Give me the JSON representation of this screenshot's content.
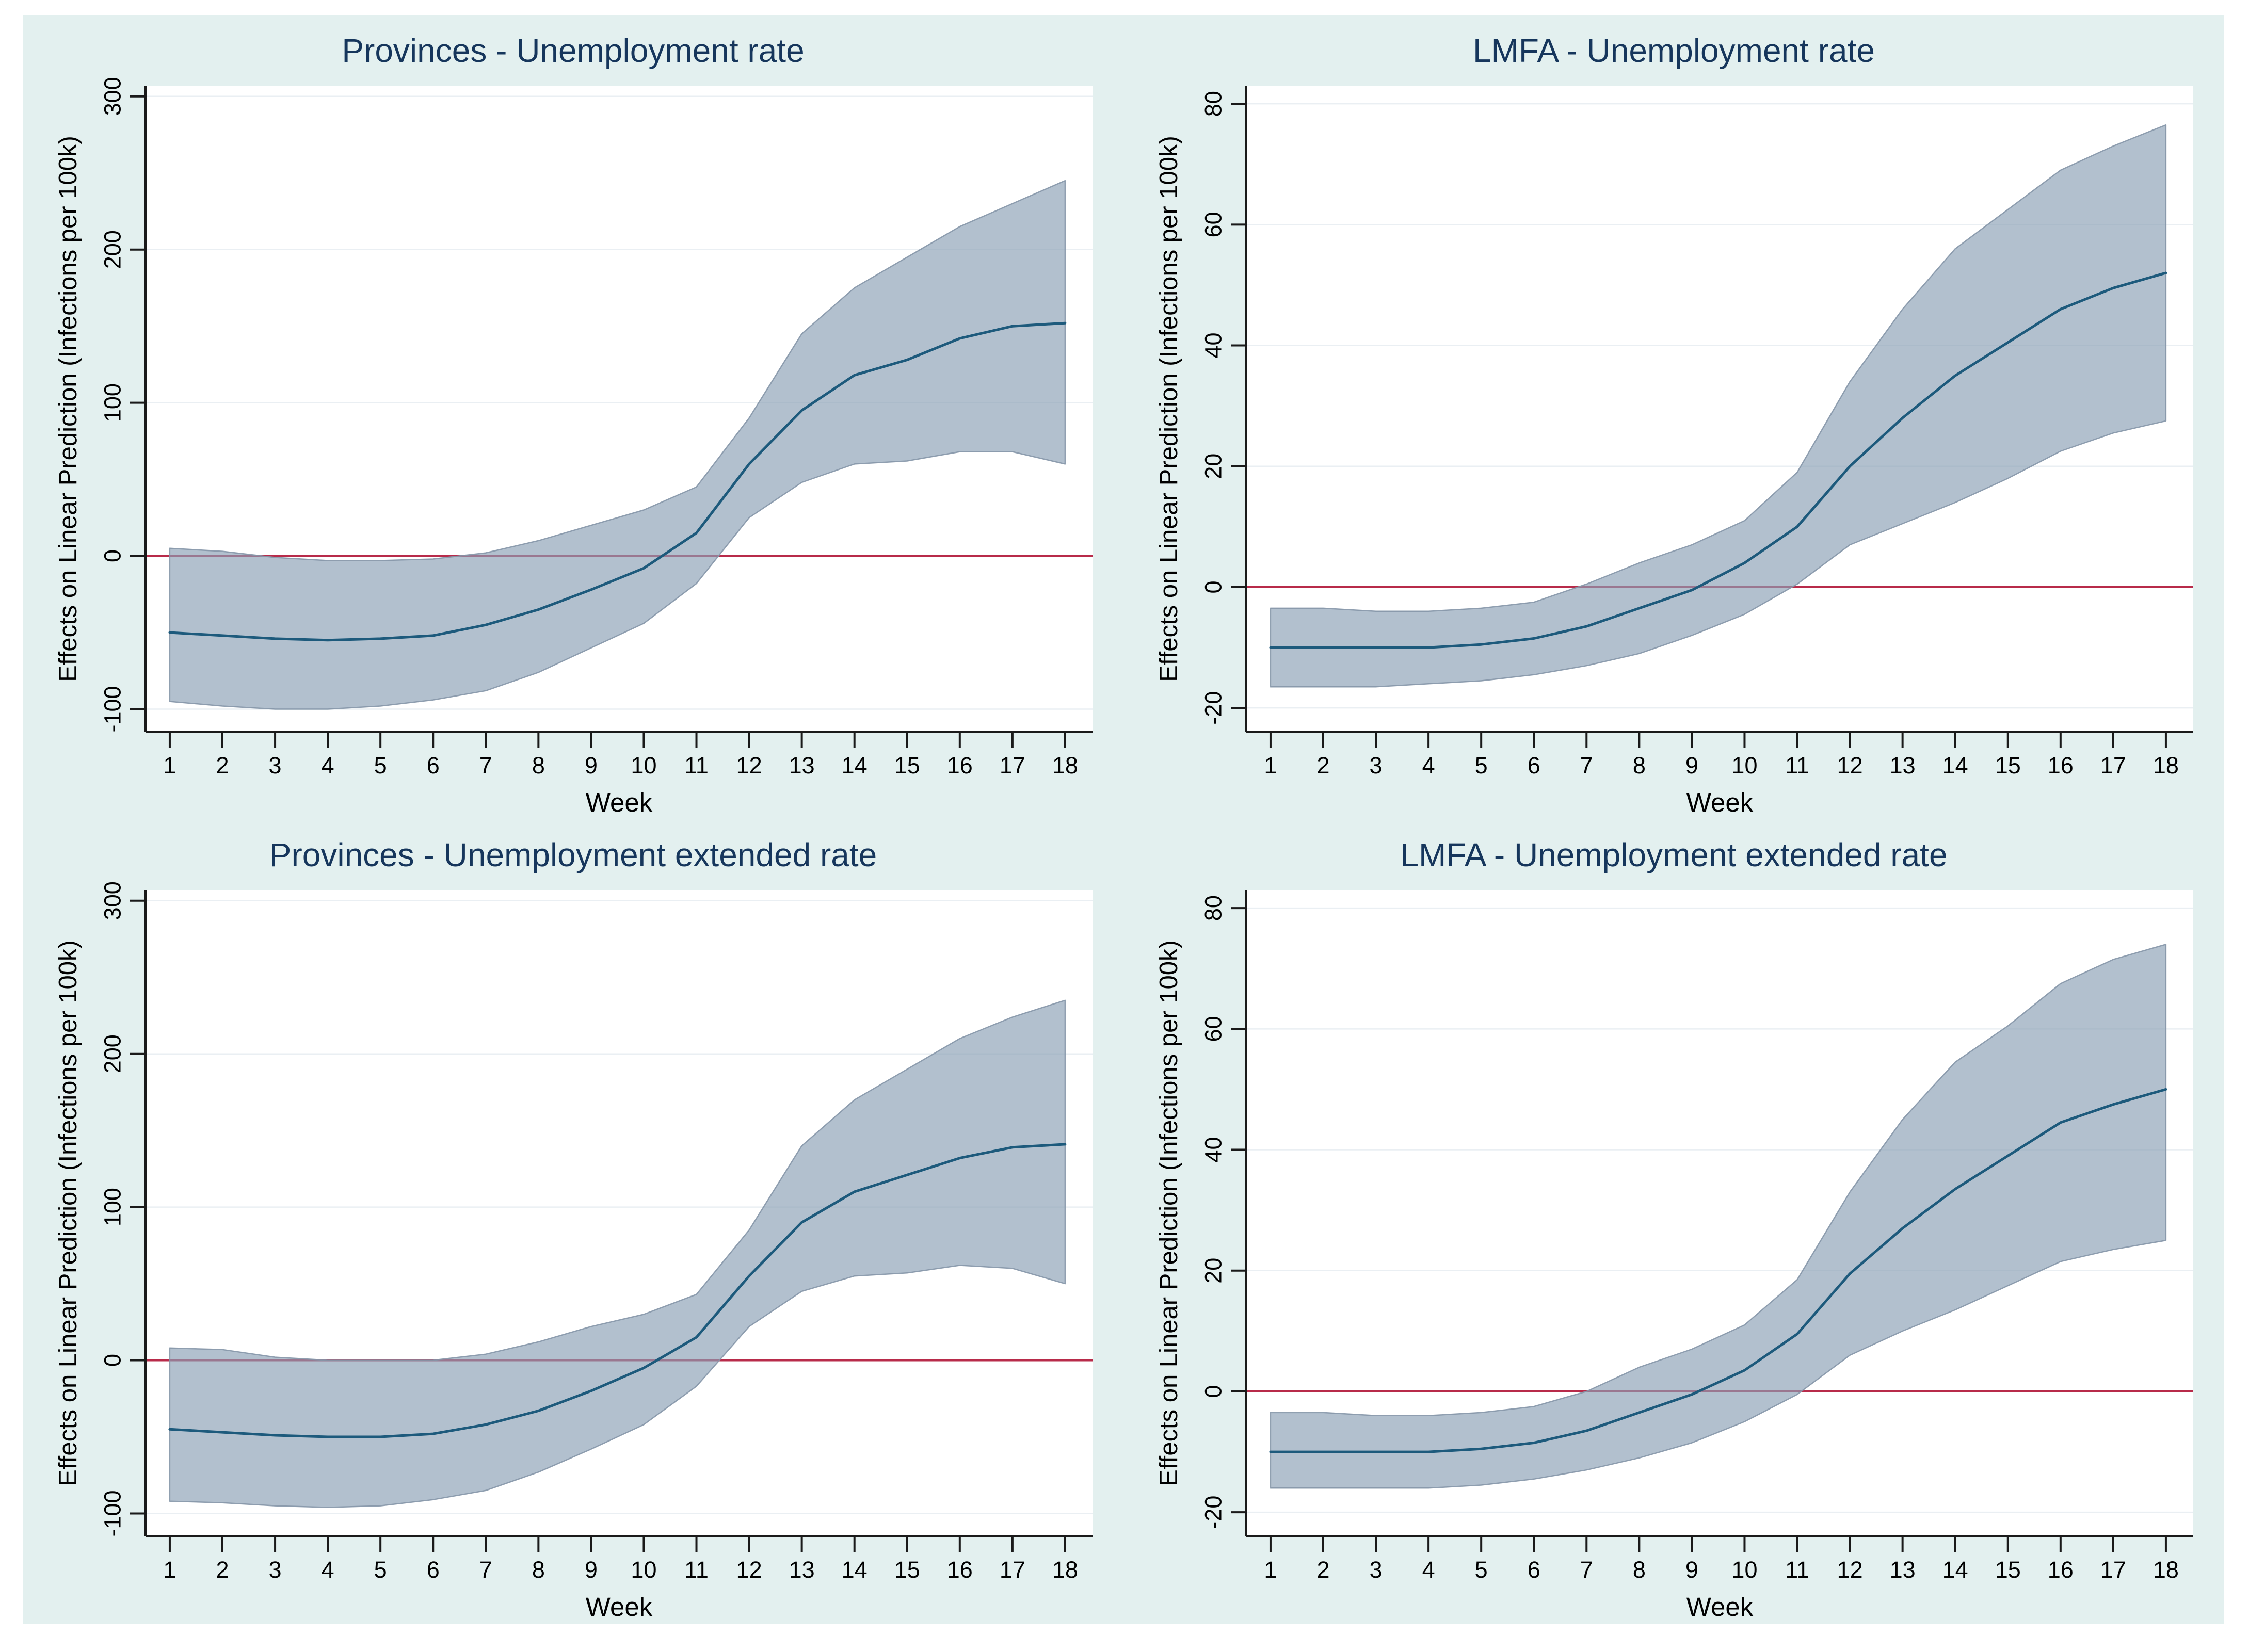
{
  "figure": {
    "background": "#e3f0ef",
    "plot_background": "#ffffff",
    "title_color": "#16365c",
    "axis_color": "#1a1a1a",
    "grid_color": "#eaeff3",
    "band_color": "#8aa0b4",
    "band_edge_color": "#8596a9",
    "line_color": "#1d5a7c",
    "zero_line_color": "#b82b4a"
  },
  "chart_data": [
    {
      "type": "area",
      "title": "Provinces - Unemployment rate",
      "xlabel": "Week",
      "ylabel": "Effects on Linear Prediction (Infections per 100k)",
      "x": [
        1,
        2,
        3,
        4,
        5,
        6,
        7,
        8,
        9,
        10,
        11,
        12,
        13,
        14,
        15,
        16,
        17,
        18
      ],
      "xticks": [
        1,
        2,
        3,
        4,
        5,
        6,
        7,
        8,
        9,
        10,
        11,
        12,
        13,
        14,
        15,
        16,
        17,
        18
      ],
      "yticks": [
        -100,
        0,
        100,
        200,
        300
      ],
      "xlim": [
        0.54,
        18.52
      ],
      "ylim": [
        -115,
        307
      ],
      "grid": true,
      "legend": "none",
      "reference_line_y": 0,
      "series": [
        {
          "name": "Effect (point estimate)",
          "values": [
            -50,
            -52,
            -54,
            -55,
            -54,
            -52,
            -45,
            -35,
            -22,
            -8,
            15,
            60,
            95,
            118,
            128,
            142,
            150,
            152
          ]
        },
        {
          "name": "CI upper",
          "values": [
            5,
            3,
            -1,
            -3,
            -3,
            -2,
            2,
            10,
            20,
            30,
            45,
            90,
            145,
            175,
            195,
            215,
            230,
            245
          ]
        },
        {
          "name": "CI lower",
          "values": [
            -95,
            -98,
            -100,
            -100,
            -98,
            -94,
            -88,
            -76,
            -60,
            -44,
            -18,
            25,
            48,
            60,
            62,
            68,
            68,
            60
          ]
        }
      ]
    },
    {
      "type": "area",
      "title": "LMFA - Unemployment rate",
      "xlabel": "Week",
      "ylabel": "Effects on Linear Prediction (Infections per 100k)",
      "x": [
        1,
        2,
        3,
        4,
        5,
        6,
        7,
        8,
        9,
        10,
        11,
        12,
        13,
        14,
        15,
        16,
        17,
        18
      ],
      "xticks": [
        1,
        2,
        3,
        4,
        5,
        6,
        7,
        8,
        9,
        10,
        11,
        12,
        13,
        14,
        15,
        16,
        17,
        18
      ],
      "yticks": [
        -20,
        0,
        20,
        40,
        60,
        80
      ],
      "xlim": [
        0.54,
        18.52
      ],
      "ylim": [
        -24,
        83
      ],
      "grid": true,
      "legend": "none",
      "reference_line_y": 0,
      "series": [
        {
          "name": "Effect (point estimate)",
          "values": [
            -10,
            -10,
            -10,
            -10,
            -9.5,
            -8.5,
            -6.5,
            -3.5,
            -0.5,
            4,
            10,
            20,
            28,
            35,
            40.5,
            46,
            49.5,
            52
          ]
        },
        {
          "name": "CI upper",
          "values": [
            -3.5,
            -3.5,
            -4,
            -4,
            -3.5,
            -2.5,
            0.5,
            4,
            7,
            11,
            19,
            34,
            46,
            56,
            62.5,
            69,
            73,
            76.5
          ]
        },
        {
          "name": "CI lower",
          "values": [
            -16.5,
            -16.5,
            -16.5,
            -16,
            -15.5,
            -14.5,
            -13,
            -11,
            -8,
            -4.5,
            0.5,
            7,
            10.5,
            14,
            18,
            22.5,
            25.5,
            27.5
          ]
        }
      ]
    },
    {
      "type": "area",
      "title": "Provinces - Unemployment extended rate",
      "xlabel": "Week",
      "ylabel": "Effects on Linear Prediction (Infections per 100k)",
      "x": [
        1,
        2,
        3,
        4,
        5,
        6,
        7,
        8,
        9,
        10,
        11,
        12,
        13,
        14,
        15,
        16,
        17,
        18
      ],
      "xticks": [
        1,
        2,
        3,
        4,
        5,
        6,
        7,
        8,
        9,
        10,
        11,
        12,
        13,
        14,
        15,
        16,
        17,
        18
      ],
      "yticks": [
        -100,
        0,
        100,
        200,
        300
      ],
      "xlim": [
        0.54,
        18.52
      ],
      "ylim": [
        -115,
        307
      ],
      "grid": true,
      "legend": "none",
      "reference_line_y": 0,
      "series": [
        {
          "name": "Effect (point estimate)",
          "values": [
            -45,
            -47,
            -49,
            -50,
            -50,
            -48,
            -42,
            -33,
            -20,
            -5,
            15,
            55,
            90,
            110,
            121,
            132,
            139,
            141
          ]
        },
        {
          "name": "CI upper",
          "values": [
            8,
            7,
            2,
            0,
            0,
            0,
            4,
            12,
            22,
            30,
            43,
            85,
            140,
            170,
            190,
            210,
            224,
            235
          ]
        },
        {
          "name": "CI lower",
          "values": [
            -92,
            -93,
            -95,
            -96,
            -95,
            -91,
            -85,
            -73,
            -58,
            -42,
            -17,
            22,
            45,
            55,
            57,
            62,
            60,
            50
          ]
        }
      ]
    },
    {
      "type": "area",
      "title": "LMFA - Unemployment extended rate",
      "xlabel": "Week",
      "ylabel": "Effects on Linear Prediction (Infections per 100k)",
      "x": [
        1,
        2,
        3,
        4,
        5,
        6,
        7,
        8,
        9,
        10,
        11,
        12,
        13,
        14,
        15,
        16,
        17,
        18
      ],
      "xticks": [
        1,
        2,
        3,
        4,
        5,
        6,
        7,
        8,
        9,
        10,
        11,
        12,
        13,
        14,
        15,
        16,
        17,
        18
      ],
      "yticks": [
        -20,
        0,
        20,
        40,
        60,
        80
      ],
      "xlim": [
        0.54,
        18.52
      ],
      "ylim": [
        -24,
        83
      ],
      "grid": true,
      "legend": "none",
      "reference_line_y": 0,
      "series": [
        {
          "name": "Effect (point estimate)",
          "values": [
            -10,
            -10,
            -10,
            -10,
            -9.5,
            -8.5,
            -6.5,
            -3.5,
            -0.5,
            3.5,
            9.5,
            19.5,
            27,
            33.5,
            39,
            44.5,
            47.5,
            50
          ]
        },
        {
          "name": "CI upper",
          "values": [
            -3.5,
            -3.5,
            -4,
            -4,
            -3.5,
            -2.5,
            0,
            4,
            7,
            11,
            18.5,
            33,
            45,
            54.5,
            60.5,
            67.5,
            71.5,
            74
          ]
        },
        {
          "name": "CI lower",
          "values": [
            -16,
            -16,
            -16,
            -16,
            -15.5,
            -14.5,
            -13,
            -11,
            -8.5,
            -5,
            -0.5,
            6,
            10,
            13.5,
            17.5,
            21.5,
            23.5,
            25
          ]
        }
      ]
    }
  ]
}
